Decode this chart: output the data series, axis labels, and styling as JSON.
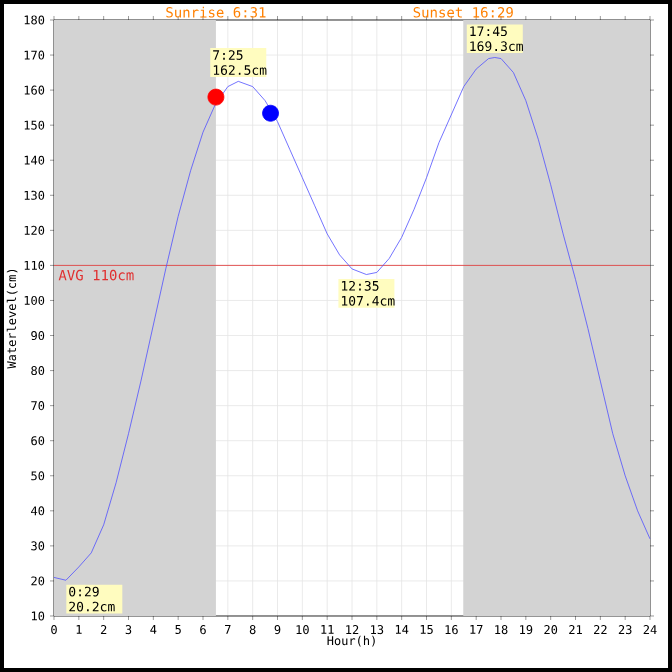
{
  "chart_data": {
    "type": "line",
    "xlabel": "Hour(h)",
    "ylabel": "Waterlevel(cm)",
    "xlim": [
      0,
      24
    ],
    "ylim": [
      10,
      180
    ],
    "xticks": [
      0,
      1,
      2,
      3,
      4,
      5,
      6,
      7,
      8,
      9,
      10,
      11,
      12,
      13,
      14,
      15,
      16,
      17,
      18,
      19,
      20,
      21,
      22,
      23,
      24
    ],
    "yticks": [
      10,
      20,
      30,
      40,
      50,
      60,
      70,
      80,
      90,
      100,
      110,
      120,
      130,
      140,
      150,
      160,
      170,
      180
    ],
    "grid": true,
    "series": [
      {
        "color": "#5050ff",
        "marker": "none",
        "x": [
          0,
          0.48,
          1,
          1.5,
          2,
          2.5,
          3,
          3.5,
          4,
          4.5,
          5,
          5.5,
          6,
          6.5,
          7,
          7.42,
          8,
          8.5,
          9,
          9.5,
          10,
          10.5,
          11,
          11.5,
          12,
          12.58,
          13,
          13.5,
          14,
          14.5,
          15,
          15.5,
          16,
          16.5,
          17,
          17.5,
          17.75,
          18,
          18.5,
          19,
          19.5,
          20,
          20.5,
          21,
          21.5,
          22,
          22.5,
          23,
          23.5,
          24
        ],
        "values": [
          21,
          20.2,
          24,
          28,
          36,
          48,
          62,
          77,
          93,
          109,
          124,
          137,
          148,
          156,
          161,
          162.5,
          161,
          157,
          151,
          143,
          135,
          127,
          119,
          113,
          109,
          107.4,
          108,
          112,
          118,
          126,
          135,
          145,
          153,
          161,
          166,
          169,
          169.3,
          169,
          165,
          157,
          146,
          133,
          119,
          106,
          92,
          77,
          62,
          50,
          40,
          32
        ]
      },
      {
        "type": "scatter",
        "color": "#ff0000",
        "marker": "circle",
        "x": [
          6.52
        ],
        "values": [
          158
        ]
      },
      {
        "type": "scatter",
        "color": "#0000ff",
        "marker": "circle",
        "x": [
          8.72
        ],
        "values": [
          153.4
        ]
      }
    ],
    "ref_lines": [
      {
        "axis": "y",
        "value": 110,
        "label": "AVG 110cm",
        "color": "#e03030"
      }
    ],
    "bands": [
      {
        "axis": "x",
        "from": 0,
        "to": 6.52,
        "label": "Sunrise 6:31",
        "color": "#d3d3d3"
      },
      {
        "axis": "x",
        "from": 16.48,
        "to": 24,
        "label": "Sunset 16:29",
        "color": "#d3d3d3"
      }
    ],
    "annotations": [
      {
        "text": "0:29 20.2cm",
        "x": 0.48,
        "y": 20.2
      },
      {
        "text": "7:25 162.5cm",
        "x": 7.42,
        "y": 162.5
      },
      {
        "text": "12:35 107.4cm",
        "x": 12.58,
        "y": 107.4
      },
      {
        "text": "17:45 169.3cm",
        "x": 17.75,
        "y": 169.3
      }
    ]
  }
}
